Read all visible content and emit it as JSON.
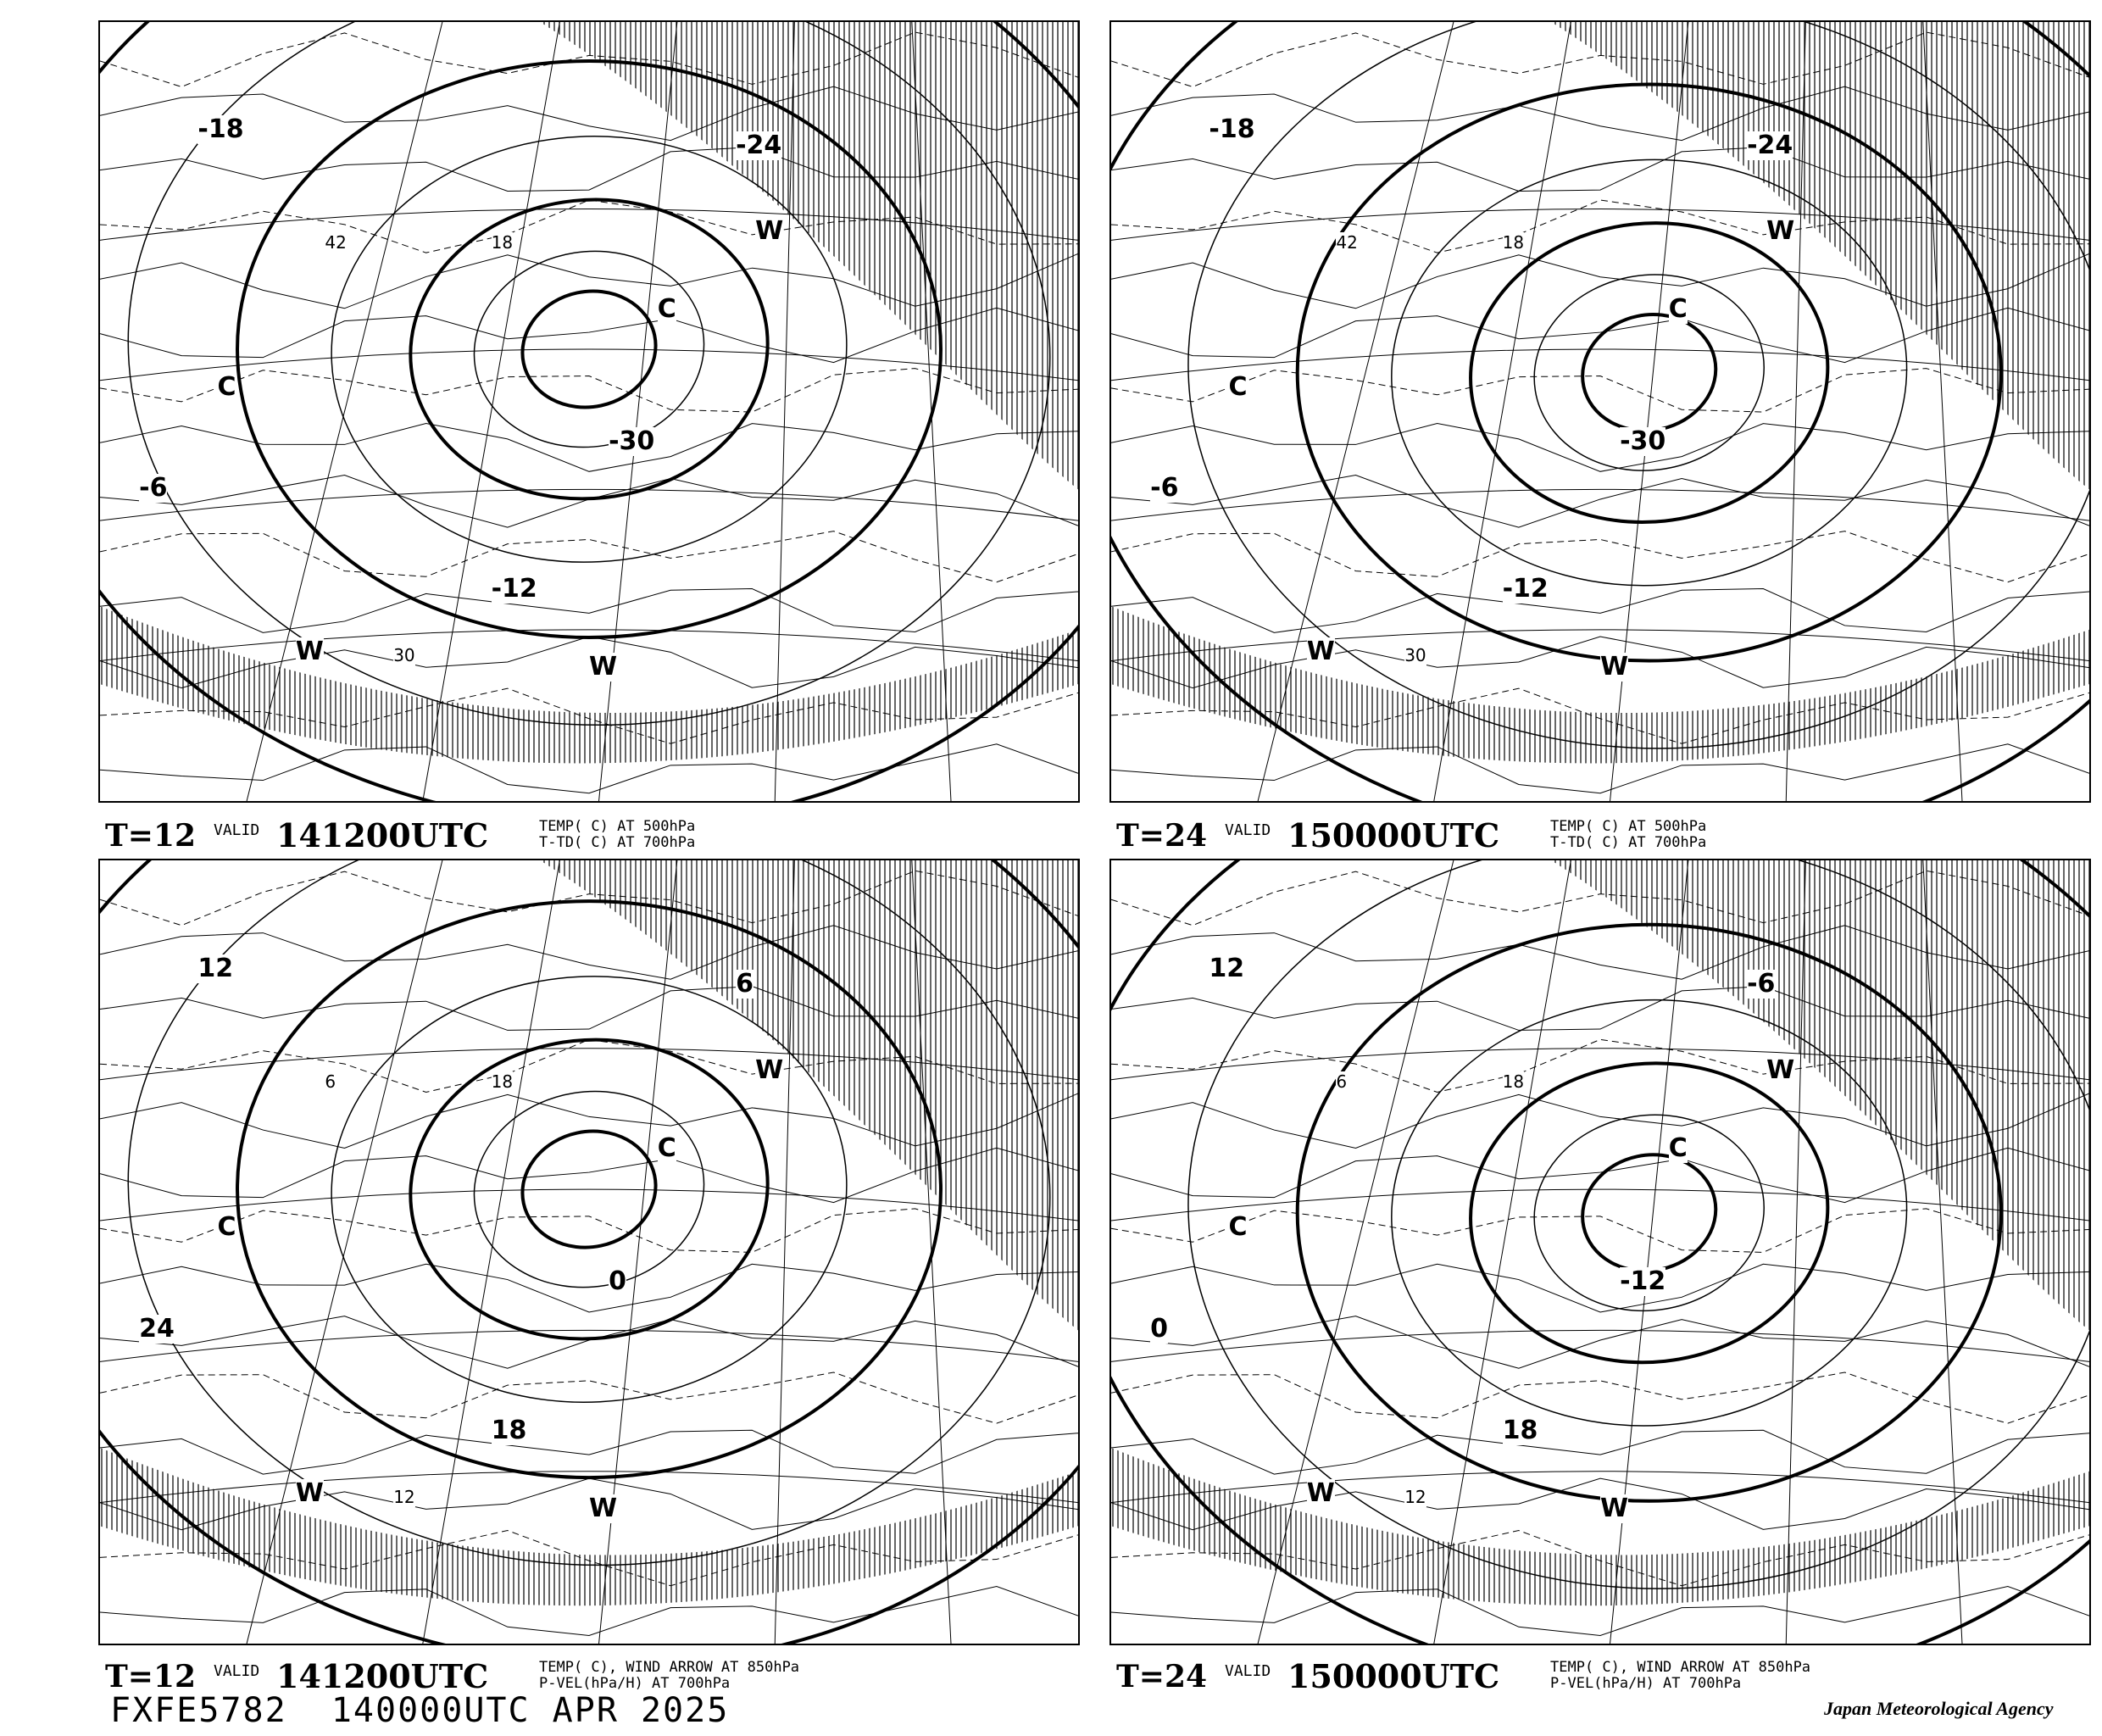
{
  "product_id": "FXFE5782",
  "initial_time": "140000UTC APR 2025",
  "agency": "Japan Meteorological Agency",
  "panels": [
    {
      "forecast": "T=12",
      "valid_label": "VALID",
      "valid_time": "141200UTC",
      "desc1": "TEMP( C) AT 500hPa",
      "desc2": "T-TD( C) AT 700hPa",
      "labels": [
        {
          "t": "-30"
        },
        {
          "t": "-24"
        },
        {
          "t": "-18"
        },
        {
          "t": "-12"
        },
        {
          "t": "-6"
        },
        {
          "t": "C"
        },
        {
          "t": "C"
        },
        {
          "t": "W"
        },
        {
          "t": "W"
        },
        {
          "t": "W"
        },
        {
          "t": "18"
        },
        {
          "t": "30"
        },
        {
          "t": "42"
        }
      ]
    },
    {
      "forecast": "T=24",
      "valid_label": "VALID",
      "valid_time": "150000UTC",
      "desc1": "TEMP( C) AT 500hPa",
      "desc2": "T-TD( C) AT 700hPa",
      "labels": [
        {
          "t": "-30"
        },
        {
          "t": "-24"
        },
        {
          "t": "-18"
        },
        {
          "t": "-12"
        },
        {
          "t": "-6"
        },
        {
          "t": "C"
        },
        {
          "t": "C"
        },
        {
          "t": "W"
        },
        {
          "t": "W"
        },
        {
          "t": "W"
        },
        {
          "t": "18"
        },
        {
          "t": "30"
        },
        {
          "t": "42"
        }
      ]
    },
    {
      "forecast": "T=12",
      "valid_label": "VALID",
      "valid_time": "141200UTC",
      "desc1": "TEMP( C), WIND ARROW AT 850hPa",
      "desc2": "P-VEL(hPa/H) AT 700hPa",
      "labels": [
        {
          "t": "0"
        },
        {
          "t": "6"
        },
        {
          "t": "12"
        },
        {
          "t": "18"
        },
        {
          "t": "24"
        },
        {
          "t": "C"
        },
        {
          "t": "C"
        },
        {
          "t": "W"
        },
        {
          "t": "W"
        },
        {
          "t": "W"
        },
        {
          "t": "18"
        },
        {
          "t": "12"
        },
        {
          "t": "6"
        }
      ]
    },
    {
      "forecast": "T=24",
      "valid_label": "VALID",
      "valid_time": "150000UTC",
      "desc1": "TEMP( C), WIND ARROW AT 850hPa",
      "desc2": "P-VEL(hPa/H) AT 700hPa",
      "labels": [
        {
          "t": "-12"
        },
        {
          "t": "-6"
        },
        {
          "t": "12"
        },
        {
          "t": "18"
        },
        {
          "t": "0"
        },
        {
          "t": "C"
        },
        {
          "t": "C"
        },
        {
          "t": "W"
        },
        {
          "t": "W"
        },
        {
          "t": "W"
        },
        {
          "t": "18"
        },
        {
          "t": "12"
        },
        {
          "t": "6"
        }
      ]
    }
  ]
}
